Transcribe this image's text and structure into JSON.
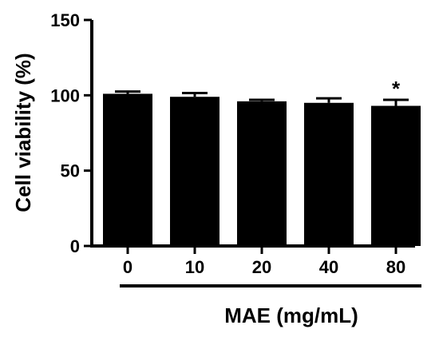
{
  "chart_data": {
    "type": "bar",
    "title": "",
    "ylabel": "Cell viability (%)",
    "xlabel": "MAE (mg/mL)",
    "categories": [
      "0",
      "10",
      "20",
      "40",
      "80"
    ],
    "values": [
      101,
      99,
      96,
      95,
      93
    ],
    "error_upper": [
      102.5,
      101.5,
      97,
      98,
      97
    ],
    "significance": [
      "",
      "",
      "",
      "",
      "*"
    ],
    "ylim": [
      0,
      150
    ],
    "yticks": [
      0,
      50,
      100,
      150
    ],
    "bar_color": "#000000",
    "grid": false,
    "legend": "none"
  }
}
